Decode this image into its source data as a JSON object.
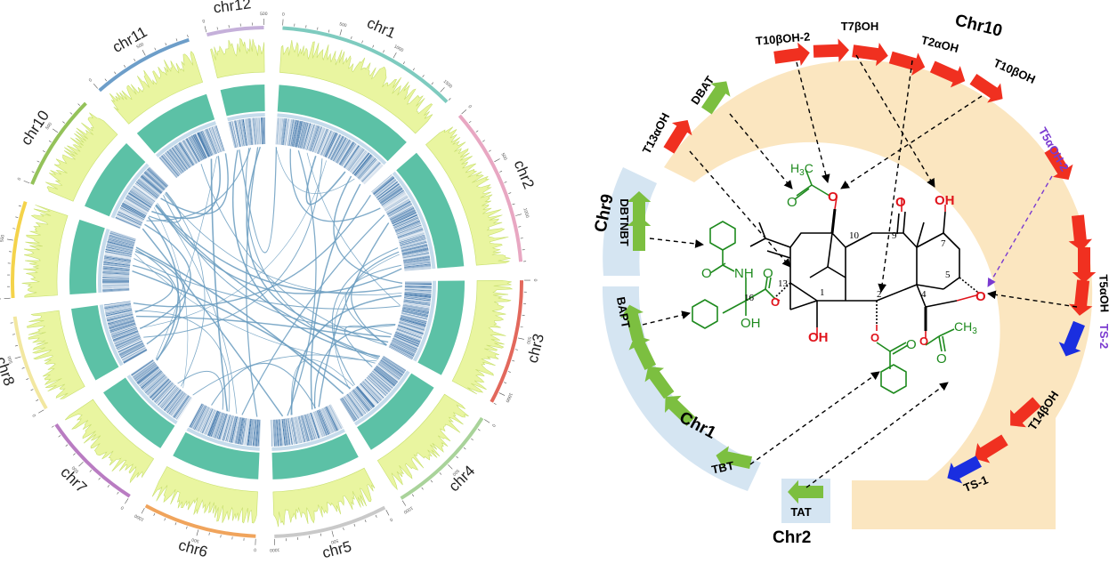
{
  "circos": {
    "chromosomes": [
      {
        "name": "chr1",
        "color": "#7ecbbf",
        "length": 1600
      },
      {
        "name": "chr2",
        "color": "#e8a7c2",
        "length": 1400
      },
      {
        "name": "chr3",
        "color": "#e2685c",
        "length": 1100
      },
      {
        "name": "chr4",
        "color": "#a9d39a",
        "length": 1000
      },
      {
        "name": "chr5",
        "color": "#c9c9c9",
        "length": 1000
      },
      {
        "name": "chr6",
        "color": "#f0a45c",
        "length": 1000
      },
      {
        "name": "chr7",
        "color": "#b97cc2",
        "length": 900
      },
      {
        "name": "chr8",
        "color": "#f2e7a0",
        "length": 850
      },
      {
        "name": "chr9",
        "color": "#f4d34a",
        "length": 850
      },
      {
        "name": "chr10",
        "color": "#94c25a",
        "length": 850
      },
      {
        "name": "chr11",
        "color": "#6d9ec9",
        "length": 900
      },
      {
        "name": "chr12",
        "color": "#c5b0da",
        "length": 500
      }
    ],
    "tick_labels": [
      "0",
      "500",
      "1000",
      "1500"
    ],
    "track_colors": {
      "density": "#e9f5a0",
      "density_edge": "#c8df6e",
      "bar": "#5cc1a6",
      "heat": "#1d5d9b",
      "link": "#6a9cc0"
    }
  },
  "pathway": {
    "clusters": [
      {
        "name": "Chr10",
        "color": "#fbe6c0"
      },
      {
        "name": "Chr9",
        "color": "#d5e5f2"
      },
      {
        "name": "Chr1",
        "color": "#d5e5f2"
      },
      {
        "name": "Chr2",
        "color": "#d5e5f2"
      }
    ],
    "genes": [
      {
        "name": "T13αOH",
        "color": "#f03020"
      },
      {
        "name": "DBAT",
        "color": "#7cbf40"
      },
      {
        "name": "T10βOH-2",
        "color": "#f03020"
      },
      {
        "name": "T7βOH",
        "color": "#f03020"
      },
      {
        "name": "T2αOH",
        "color": "#f03020"
      },
      {
        "name": "T10βOH",
        "color": "#f03020"
      },
      {
        "name": "T5αOH-2",
        "color": "#f03020"
      },
      {
        "name": "T5αOH",
        "color": "#f03020"
      },
      {
        "name": "TS-2",
        "color": "#1a2ee0"
      },
      {
        "name": "T14βOH",
        "color": "#f03020"
      },
      {
        "name": "TS-1",
        "color": "#1a2ee0"
      },
      {
        "name": "DBTNBT",
        "color": "#7cbf40"
      },
      {
        "name": "BAPT",
        "color": "#7cbf40"
      },
      {
        "name": "TBT",
        "color": "#7cbf40"
      },
      {
        "name": "TAT",
        "color": "#7cbf40"
      }
    ],
    "molecule": {
      "positions": [
        "10",
        "9",
        "7",
        "5",
        "13",
        "1",
        "2",
        "4",
        "16"
      ],
      "atoms": {
        "O": "O",
        "OH": "OH",
        "NH": "NH",
        "H3C": "H3C",
        "CH3": "CH3"
      }
    },
    "colors": {
      "black": "#000000",
      "red": "#e0141c",
      "green": "#1e8a1e",
      "purple": "#7a3ad0"
    }
  }
}
